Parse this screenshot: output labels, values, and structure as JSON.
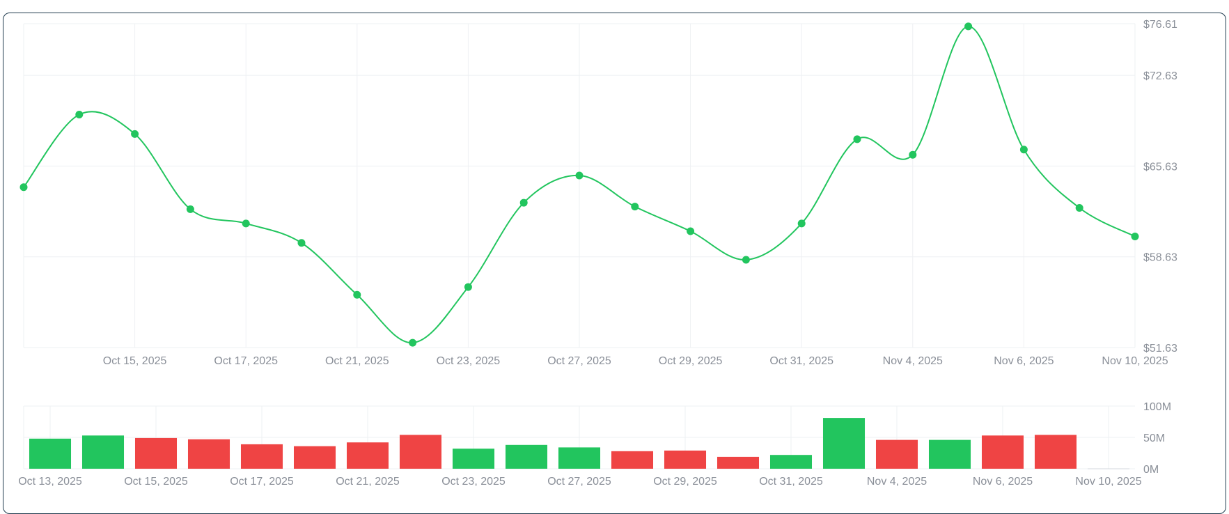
{
  "chart_data": [
    {
      "type": "line",
      "x": [
        "Oct 13, 2025",
        "Oct 14, 2025",
        "Oct 15, 2025",
        "Oct 16, 2025",
        "Oct 17, 2025",
        "Oct 20, 2025",
        "Oct 21, 2025",
        "Oct 22, 2025",
        "Oct 23, 2025",
        "Oct 24, 2025",
        "Oct 27, 2025",
        "Oct 28, 2025",
        "Oct 29, 2025",
        "Oct 30, 2025",
        "Oct 31, 2025",
        "Nov 3, 2025",
        "Nov 4, 2025",
        "Nov 5, 2025",
        "Nov 6, 2025",
        "Nov 7, 2025",
        "Nov 10, 2025"
      ],
      "series": [
        {
          "values": [
            64.0,
            69.6,
            68.1,
            62.3,
            61.2,
            59.7,
            55.7,
            52.0,
            56.3,
            62.8,
            64.9,
            62.5,
            60.6,
            58.4,
            61.2,
            67.7,
            66.5,
            76.4,
            66.9,
            62.4,
            60.2
          ]
        }
      ],
      "x_tick_labels": [
        "Oct 15, 2025",
        "Oct 17, 2025",
        "Oct 21, 2025",
        "Oct 23, 2025",
        "Oct 27, 2025",
        "Oct 29, 2025",
        "Oct 31, 2025",
        "Nov 4, 2025",
        "Nov 6, 2025",
        "Nov 10, 2025"
      ],
      "y_tick_labels": [
        "$76.61",
        "$72.63",
        "$65.63",
        "$58.63",
        "$51.63"
      ],
      "ylim": [
        51.63,
        76.61
      ],
      "title": "",
      "xlabel": "",
      "ylabel": "",
      "grid": true,
      "colors": {
        "line": "#22c55e"
      }
    },
    {
      "type": "bar",
      "categories": [
        "Oct 13, 2025",
        "Oct 14, 2025",
        "Oct 15, 2025",
        "Oct 16, 2025",
        "Oct 17, 2025",
        "Oct 20, 2025",
        "Oct 21, 2025",
        "Oct 22, 2025",
        "Oct 23, 2025",
        "Oct 24, 2025",
        "Oct 27, 2025",
        "Oct 28, 2025",
        "Oct 29, 2025",
        "Oct 30, 2025",
        "Oct 31, 2025",
        "Nov 3, 2025",
        "Nov 4, 2025",
        "Nov 5, 2025",
        "Nov 6, 2025",
        "Nov 7, 2025",
        "Nov 10, 2025"
      ],
      "values": [
        48,
        53,
        49,
        47,
        39,
        36,
        42,
        54,
        32,
        38,
        34,
        28,
        29,
        19,
        22,
        81,
        46,
        46,
        53,
        54,
        0.5
      ],
      "directions": [
        "up",
        "up",
        "down",
        "down",
        "down",
        "down",
        "down",
        "down",
        "up",
        "up",
        "up",
        "down",
        "down",
        "down",
        "up",
        "up",
        "down",
        "up",
        "down",
        "down",
        "flat"
      ],
      "x_tick_labels": [
        "Oct 13, 2025",
        "Oct 15, 2025",
        "Oct 17, 2025",
        "Oct 21, 2025",
        "Oct 23, 2025",
        "Oct 27, 2025",
        "Oct 29, 2025",
        "Oct 31, 2025",
        "Nov 4, 2025",
        "Nov 6, 2025",
        "Nov 10, 2025"
      ],
      "y_tick_labels": [
        "100M",
        "50M",
        "0M"
      ],
      "ylim": [
        0,
        100
      ],
      "title": "",
      "xlabel": "",
      "ylabel": "",
      "grid": true,
      "colors": {
        "up": "#22c55e",
        "down": "#ef4444",
        "flat": "#d1d5db"
      }
    }
  ]
}
